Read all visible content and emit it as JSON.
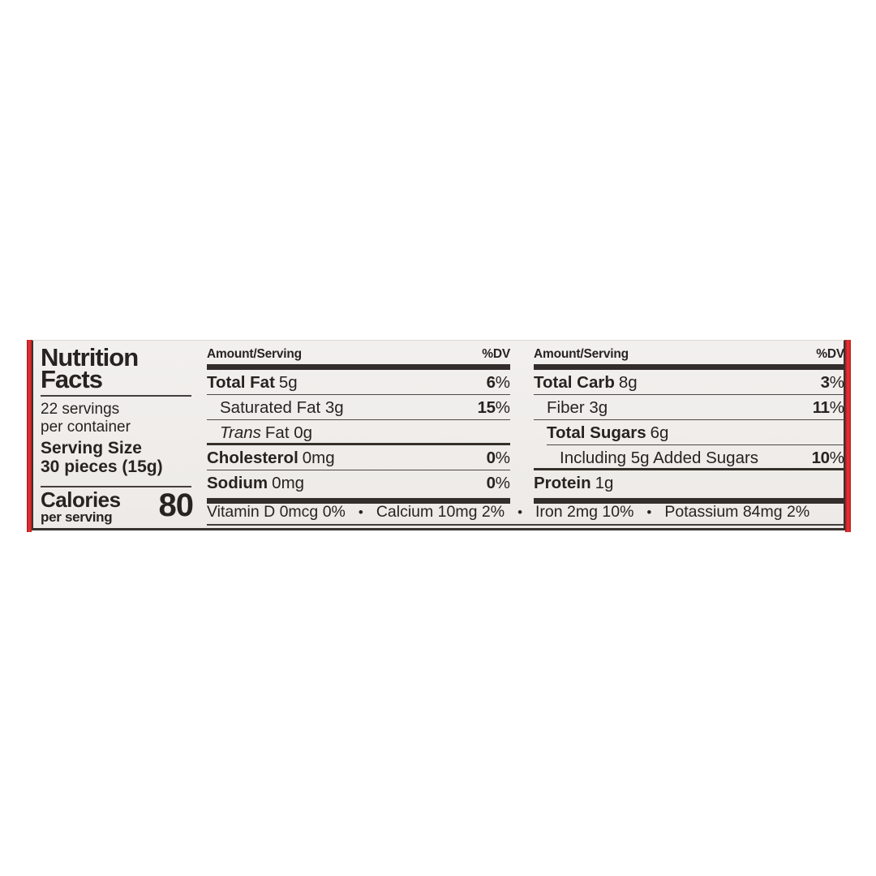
{
  "panel": {
    "title_line1": "Nutrition",
    "title_line2": "Facts",
    "servings_line1": "22 servings",
    "servings_line2": "per container",
    "serving_size_label": "Serving Size",
    "serving_size_value": "30 pieces (15g)",
    "calories_label": "Calories",
    "calories_sublabel": "per serving",
    "calories_value": "80",
    "column_header": {
      "amount": "Amount/Serving",
      "dv": "%DV"
    },
    "columns": [
      {
        "rows": [
          {
            "name": "Total Fat",
            "amount": "5g",
            "dv": "6",
            "pct": "%"
          },
          {
            "label": "Saturated Fat 3g",
            "dv": "15",
            "pct": "%"
          },
          {
            "italic": "Trans",
            "rest": "Fat 0g"
          },
          {
            "name": "Cholesterol",
            "amount": "0mg",
            "dv": "0",
            "pct": "%"
          },
          {
            "name": "Sodium",
            "amount": "0mg",
            "dv": "0",
            "pct": "%"
          }
        ]
      },
      {
        "rows": [
          {
            "name": "Total Carb",
            "amount": "8g",
            "dv": "3",
            "pct": "%"
          },
          {
            "label": "Fiber 3g",
            "dv": "11",
            "pct": "%"
          },
          {
            "name": "Total Sugars",
            "amount": "6g"
          },
          {
            "label": "Including 5g Added Sugars",
            "dv": "10",
            "pct": "%"
          },
          {
            "name": "Protein",
            "amount": "1g"
          }
        ]
      }
    ],
    "footer": {
      "separator": "•",
      "items": [
        "Vitamin D 0mcg 0%",
        "Calcium 10mg 2%",
        "Iron 2mg 10%",
        "Potassium 84mg 2%"
      ]
    }
  },
  "colors": {
    "accent_red": "#d8232a",
    "bar_dark": "#332e2b",
    "text": "#272321",
    "panel_bg": "#f0eeec",
    "hairline": "#4c4744"
  }
}
